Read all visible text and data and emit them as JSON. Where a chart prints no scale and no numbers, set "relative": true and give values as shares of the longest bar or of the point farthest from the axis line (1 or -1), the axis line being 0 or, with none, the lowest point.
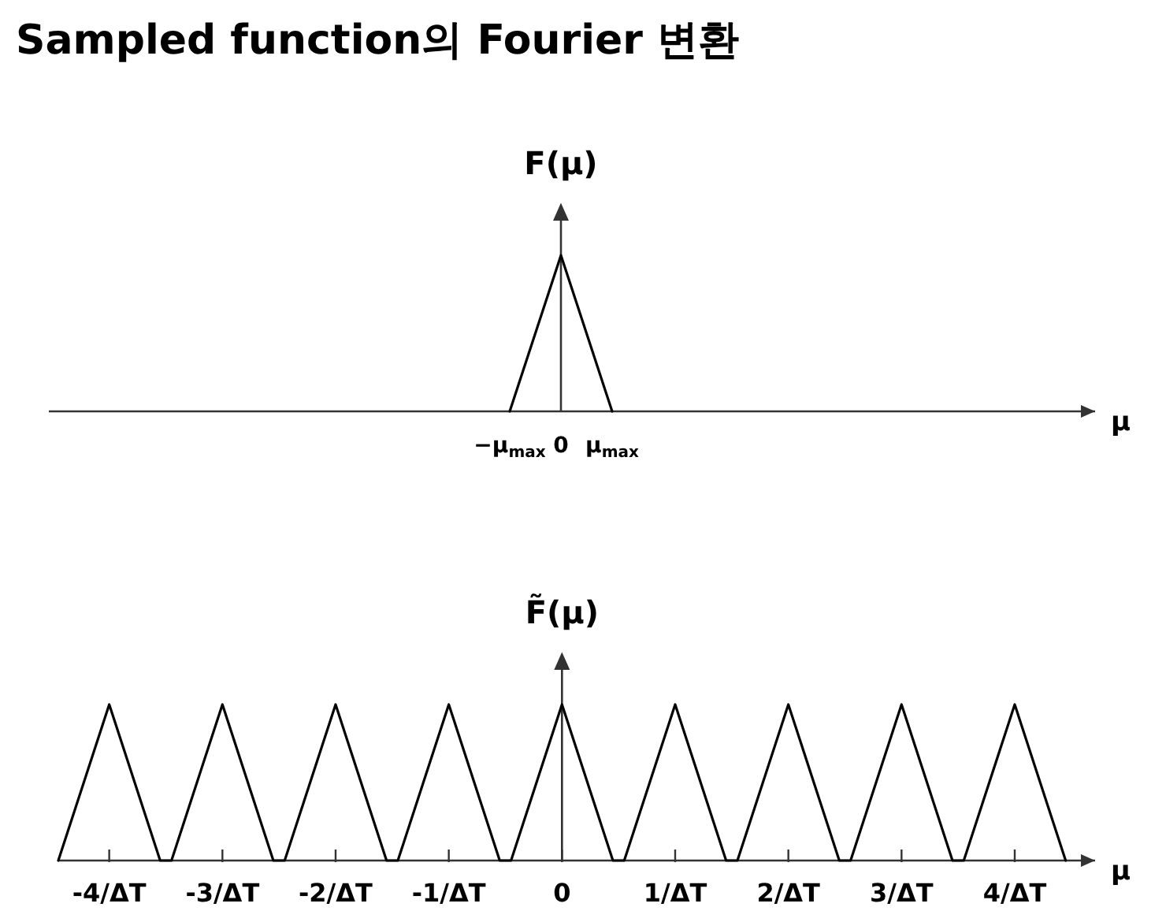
{
  "chart_data": [
    {
      "type": "line",
      "title": "Sampled function의 Fourier 변환",
      "ylabel": "F(μ)",
      "xlabel": "μ",
      "relative": true,
      "categories": [
        null,
        null,
        null,
        null,
        null,
        null,
        null,
        null,
        null,
        "−μ$_{max}$",
        "0",
        "μ$_{max}$",
        null,
        null,
        null,
        null,
        null,
        null,
        null,
        null,
        null
      ],
      "series": [
        {
          "color": "#000000",
          "values": [
            null,
            null,
            null,
            null,
            null,
            null,
            null,
            null,
            null,
            0,
            1,
            0,
            null,
            null,
            null,
            null,
            null,
            null,
            null,
            null,
            null
          ]
        }
      ]
    },
    {
      "type": "line",
      "ylabel": "F̃(μ)",
      "xlabel": "μ",
      "relative": true,
      "x": [
        -4.45,
        -4,
        -3.55,
        -3.45,
        -3,
        -2.55,
        -2.45,
        -2,
        -1.55,
        -1.45,
        -1,
        -0.55,
        -0.45,
        0,
        0.45,
        0.55,
        1,
        1.45,
        1.55,
        2,
        2.45,
        2.55,
        3,
        3.45,
        3.55,
        4,
        4.45
      ],
      "series": [
        {
          "color": "#000000",
          "values": [
            0,
            1,
            0,
            0,
            1,
            0,
            0,
            1,
            0,
            0,
            1,
            0,
            0,
            1,
            0,
            0,
            1,
            0,
            0,
            1,
            0,
            0,
            1,
            0,
            0,
            1,
            0
          ]
        }
      ],
      "xlim": [
        -4.45,
        4.71
      ],
      "xticks": [
        {
          "value": -4,
          "label": "-4/ΔT"
        },
        {
          "value": -3,
          "label": "-3/ΔT"
        },
        {
          "value": -2,
          "label": "-2/ΔT"
        },
        {
          "value": -1,
          "label": "-1/ΔT"
        },
        0,
        {
          "value": 1,
          "label": "1/ΔT"
        },
        {
          "value": 2,
          "label": "2/ΔT"
        },
        {
          "value": 3,
          "label": "3/ΔT"
        },
        {
          "value": 4,
          "label": "4/ΔT"
        }
      ]
    }
  ]
}
